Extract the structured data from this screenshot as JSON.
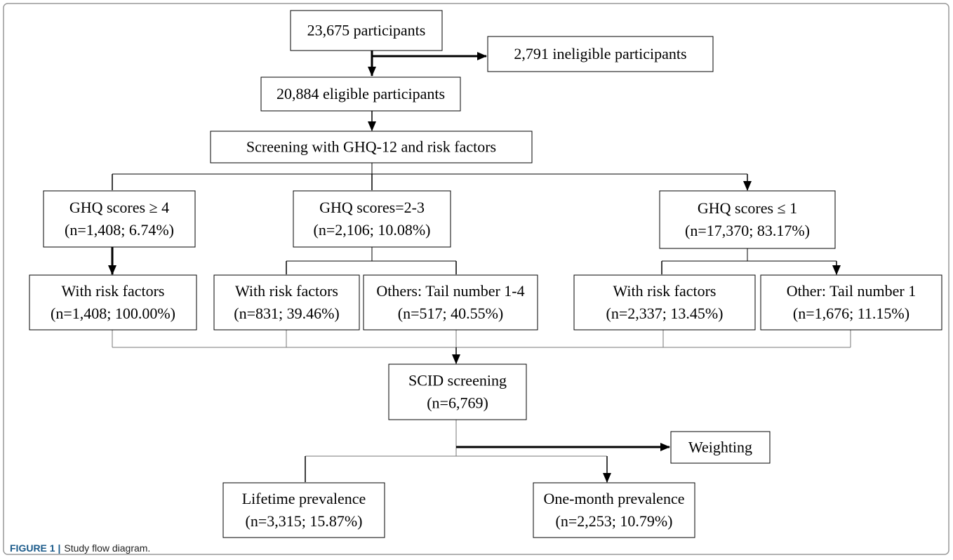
{
  "nodes": [
    {
      "lines": [
        "23,675 participants"
      ]
    },
    {
      "lines": [
        "2,791 ineligible participants"
      ]
    },
    {
      "lines": [
        "20,884 eligible participants"
      ]
    },
    {
      "lines": [
        "Screening with GHQ-12 and risk factors"
      ]
    },
    {
      "lines": [
        "GHQ scores ≥ 4",
        "(n=1,408; 6.74%)"
      ]
    },
    {
      "lines": [
        "GHQ scores=2-3",
        "(n=2,106; 10.08%)"
      ]
    },
    {
      "lines": [
        "GHQ scores ≤ 1",
        "(n=17,370; 83.17%)"
      ]
    },
    {
      "lines": [
        "With risk factors",
        "(n=1,408; 100.00%)"
      ]
    },
    {
      "lines": [
        "With risk factors",
        "(n=831; 39.46%)"
      ]
    },
    {
      "lines": [
        "Others: Tail number 1-4",
        "(n=517; 40.55%)"
      ]
    },
    {
      "lines": [
        "With risk factors",
        "(n=2,337; 13.45%)"
      ]
    },
    {
      "lines": [
        "Other: Tail number 1",
        "(n=1,676; 11.15%)"
      ]
    },
    {
      "lines": [
        "SCID screening",
        "(n=6,769)"
      ]
    },
    {
      "lines": [
        "Weighting"
      ]
    },
    {
      "lines": [
        "Lifetime prevalence",
        "(n=3,315; 15.87%)"
      ]
    },
    {
      "lines": [
        "One-month prevalence",
        "(n=2,253; 10.79%)"
      ]
    }
  ],
  "caption": {
    "label": "FIGURE 1 |",
    "text": "Study flow diagram."
  }
}
